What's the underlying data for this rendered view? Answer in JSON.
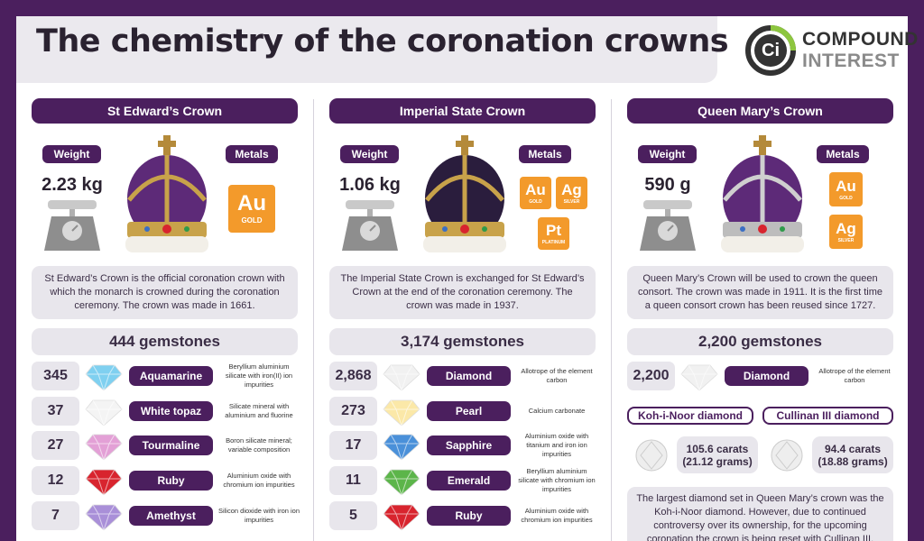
{
  "header": {
    "title": "The chemistry of the coronation crowns",
    "logo_mark": "Ci",
    "logo_line1": "COMPOUND",
    "logo_line2": "INTEREST"
  },
  "crowns": [
    {
      "name": "St Edward’s Crown",
      "weight_label": "Weight",
      "weight": "2.23 kg",
      "metals_label": "Metals",
      "metals": [
        {
          "symbol": "Au",
          "name": "GOLD"
        }
      ],
      "description": "St Edward’s Crown is the official coronation crown with which the monarch is crowned during the coronation ceremony. The crown was made in 1661.",
      "gemstones": "444 gemstones",
      "gems": [
        {
          "count": "345",
          "name": "Aquamarine",
          "desc": "Beryllium aluminium silicate with iron(II) ion impurities"
        },
        {
          "count": "37",
          "name": "White topaz",
          "desc": "Silicate mineral with aluminium and fluorine"
        },
        {
          "count": "27",
          "name": "Tourmaline",
          "desc": "Boron silicate mineral; variable composition"
        },
        {
          "count": "12",
          "name": "Ruby",
          "desc": "Aluminium oxide with chromium ion impurities"
        },
        {
          "count": "7",
          "name": "Amethyst",
          "desc": "Silicon dioxide with iron ion impurities"
        }
      ]
    },
    {
      "name": "Imperial State Crown",
      "weight_label": "Weight",
      "weight": "1.06 kg",
      "metals_label": "Metals",
      "metals": [
        {
          "symbol": "Au",
          "name": "GOLD"
        },
        {
          "symbol": "Ag",
          "name": "SILVER"
        },
        {
          "symbol": "Pt",
          "name": "PLATINUM"
        }
      ],
      "description": "The Imperial State Crown is exchanged for St Edward’s Crown at the end of the coronation ceremony. The crown was made in 1937.",
      "gemstones": "3,174 gemstones",
      "gems": [
        {
          "count": "2,868",
          "name": "Diamond",
          "desc": "Allotrope of the element carbon"
        },
        {
          "count": "273",
          "name": "Pearl",
          "desc": "Calcium carbonate"
        },
        {
          "count": "17",
          "name": "Sapphire",
          "desc": "Aluminium oxide with titanium and iron ion impurities"
        },
        {
          "count": "11",
          "name": "Emerald",
          "desc": "Beryllium aluminium silicate with chromium ion impurities"
        },
        {
          "count": "5",
          "name": "Ruby",
          "desc": "Aluminium oxide with chromium ion impurities"
        }
      ]
    },
    {
      "name": "Queen Mary’s Crown",
      "weight_label": "Weight",
      "weight": "590 g",
      "metals_label": "Metals",
      "metals": [
        {
          "symbol": "Au",
          "name": "GOLD"
        },
        {
          "symbol": "Ag",
          "name": "SILVER"
        }
      ],
      "description": "Queen Mary’s Crown will be used to crown the queen consort. The crown was made in 1911. It is the first time a queen consort crown has been reused since 1727.",
      "gemstones": "2,200 gemstones",
      "gems": [
        {
          "count": "2,200",
          "name": "Diamond",
          "desc": "Allotrope of the element carbon"
        }
      ],
      "diamonds": [
        {
          "name": "Koh-i-Noor diamond",
          "carats": "105.6 carats",
          "grams": "(21.12 grams)"
        },
        {
          "name": "Cullinan III diamond",
          "carats": "94.4 carats",
          "grams": "(18.88 grams)"
        }
      ],
      "note": "The largest diamond set in Queen Mary’s crown was the Koh-i-Noor diamond. However, due to continued controversy over its ownership, for the upcoming coronation the crown is being reset with Cullinan III."
    }
  ]
}
